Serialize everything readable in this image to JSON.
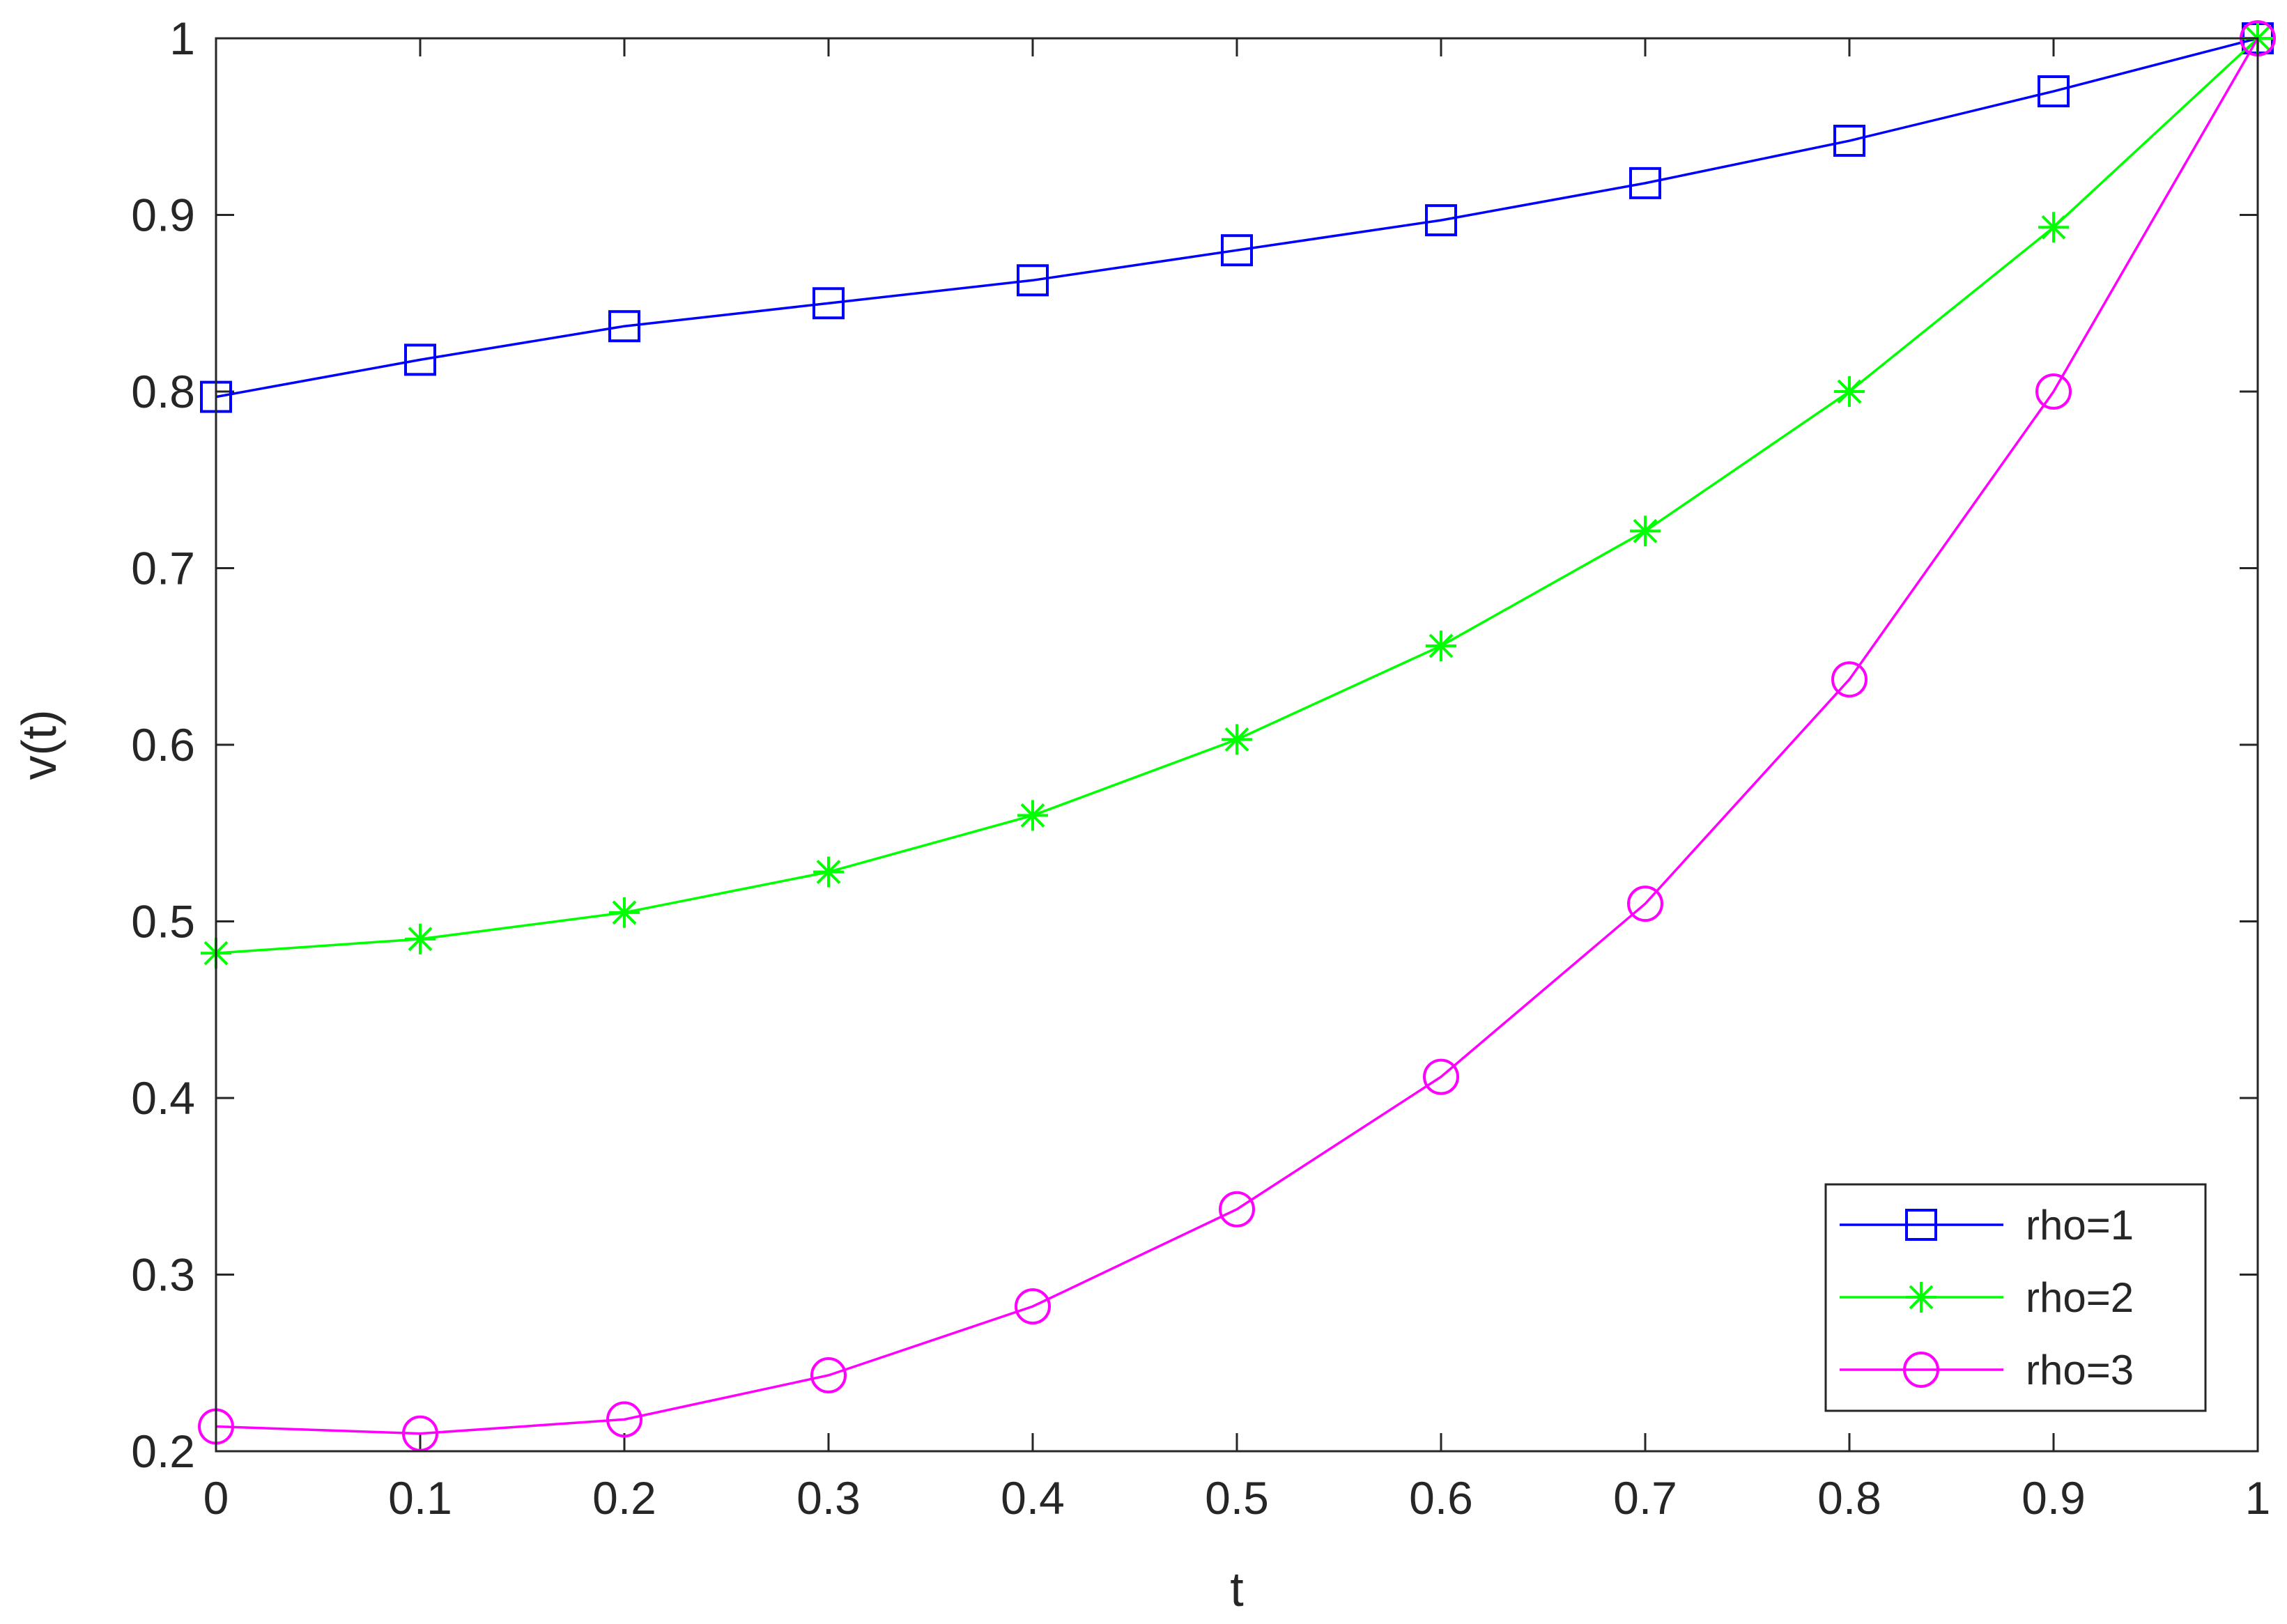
{
  "chart_data": {
    "type": "line",
    "xlabel": "t",
    "ylabel": "v(t)",
    "xlim": [
      0,
      1
    ],
    "ylim": [
      0.2,
      1
    ],
    "xticks": [
      "0",
      "0.1",
      "0.2",
      "0.3",
      "0.4",
      "0.5",
      "0.6",
      "0.7",
      "0.8",
      "0.9",
      "1"
    ],
    "yticks": [
      "0.2",
      "0.3",
      "0.4",
      "0.5",
      "0.6",
      "0.7",
      "0.8",
      "0.9",
      "1"
    ],
    "grid": false,
    "legend_position": "bottom-right",
    "x": [
      0,
      0.1,
      0.2,
      0.3,
      0.4,
      0.5,
      0.6,
      0.7,
      0.8,
      0.9,
      1.0
    ],
    "series": [
      {
        "name": "rho=1",
        "color": "#0000ff",
        "marker": "square",
        "values": [
          0.797,
          0.818,
          0.837,
          0.85,
          0.863,
          0.88,
          0.897,
          0.918,
          0.942,
          0.97,
          1.0
        ]
      },
      {
        "name": "rho=2",
        "color": "#00ff00",
        "marker": "asterisk",
        "values": [
          0.482,
          0.49,
          0.505,
          0.528,
          0.56,
          0.603,
          0.656,
          0.721,
          0.8,
          0.893,
          1.0
        ]
      },
      {
        "name": "rho=3",
        "color": "#ff00ff",
        "marker": "circle",
        "values": [
          0.214,
          0.21,
          0.218,
          0.243,
          0.282,
          0.337,
          0.412,
          0.51,
          0.637,
          0.8,
          1.0
        ]
      }
    ]
  }
}
